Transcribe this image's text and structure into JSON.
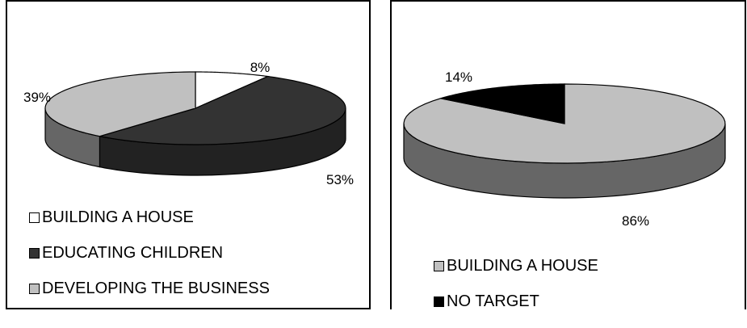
{
  "chart_data": [
    {
      "type": "pie",
      "title": "",
      "slices": [
        {
          "label": "BUILDING A HOUSE",
          "value": 8,
          "display": "8%",
          "color": "#ffffff",
          "side": "#ffffff"
        },
        {
          "label": "EDUCATING CHILDREN",
          "value": 53,
          "display": "53%",
          "color": "#333333",
          "side": "#222222"
        },
        {
          "label": "DEVELOPING THE BUSINESS",
          "value": 39,
          "display": "39%",
          "color": "#c0c0c0",
          "side": "#666666"
        }
      ],
      "legend_position": "bottom-left"
    },
    {
      "type": "pie",
      "title": "",
      "slices": [
        {
          "label": "BUILDING A HOUSE",
          "value": 86,
          "display": "86%",
          "color": "#c0c0c0",
          "side": "#666666"
        },
        {
          "label": "NO TARGET",
          "value": 14,
          "display": "14%",
          "color": "#000000",
          "side": "#000000"
        }
      ],
      "legend_position": "bottom-left"
    }
  ]
}
